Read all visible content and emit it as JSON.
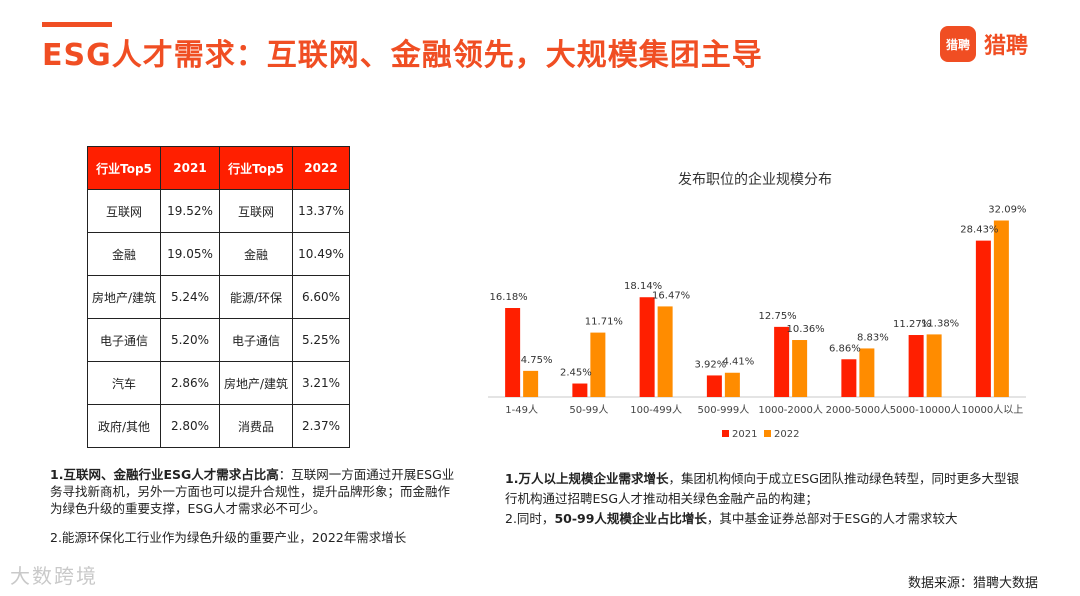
{
  "header": {
    "title": "ESG人才需求：互联网、金融领先，大规模集团主导",
    "logo_mark": "猎聘",
    "logo_text": "猎聘"
  },
  "table": {
    "headers": [
      "行业Top5",
      "2021",
      "行业Top5",
      "2022"
    ],
    "rows": [
      [
        "互联网",
        "19.52%",
        "互联网",
        "13.37%"
      ],
      [
        "金融",
        "19.05%",
        "金融",
        "10.49%"
      ],
      [
        "房地产/建筑",
        "5.24%",
        "能源/环保",
        "6.60%"
      ],
      [
        "电子通信",
        "5.20%",
        "电子通信",
        "5.25%"
      ],
      [
        "汽车",
        "2.86%",
        "房地产/建筑",
        "3.21%"
      ],
      [
        "政府/其他",
        "2.80%",
        "消费品",
        "2.37%"
      ]
    ]
  },
  "chart_data": {
    "type": "bar",
    "title": "发布职位的企业规模分布",
    "categories": [
      "1-49人",
      "50-99人",
      "100-499人",
      "500-999人",
      "1000-2000人",
      "2000-5000人",
      "5000-10000人",
      "10000人以上"
    ],
    "series": [
      {
        "name": "2021",
        "values": [
          16.18,
          2.45,
          18.14,
          3.92,
          12.75,
          6.86,
          11.27,
          28.43
        ],
        "labels": [
          "16.18%",
          "2.45%",
          "18.14%",
          "3.92%",
          "12.75%",
          "6.86%",
          "11.27%",
          "28.43%"
        ],
        "color": "#ff1f00"
      },
      {
        "name": "2022",
        "values": [
          4.75,
          11.71,
          16.47,
          4.41,
          10.36,
          8.83,
          11.38,
          32.09
        ],
        "labels": [
          "4.75%",
          "11.71%",
          "16.47%",
          "4.41%",
          "10.36%",
          "8.83%",
          "11.38%",
          "32.09%"
        ],
        "color": "#ff8c00"
      }
    ],
    "ylim": [
      0,
      34
    ],
    "legend": "bottom",
    "grid": false
  },
  "notes": {
    "left": {
      "p1_bold": "1.互联网、金融行业ESG人才需求占比高",
      "p1_text": "：互联网一方面通过开展ESG业务寻找新商机，另外一方面也可以提升合规性，提升品牌形象；而金融作为绿色升级的重要支撑，ESG人才需求必不可少。",
      "p2_text": "2.能源环保化工行业作为绿色升级的重要产业，2022年需求增长"
    },
    "right": {
      "p1_bold": "1.万人以上规模企业需求增长",
      "p1_text": "，集团机构倾向于成立ESG团队推动绿色转型，同时更多大型银行机构通过招聘ESG人才推动相关绿色金融产品的构建；",
      "p2_prefix": "2.同时，",
      "p2_bold": "50-99人规模企业占比增长",
      "p2_text": "，其中基金证券总部对于ESG的人才需求较大"
    }
  },
  "footer": {
    "source": "数据来源：猎聘大数据",
    "watermark": "大数跨境"
  }
}
